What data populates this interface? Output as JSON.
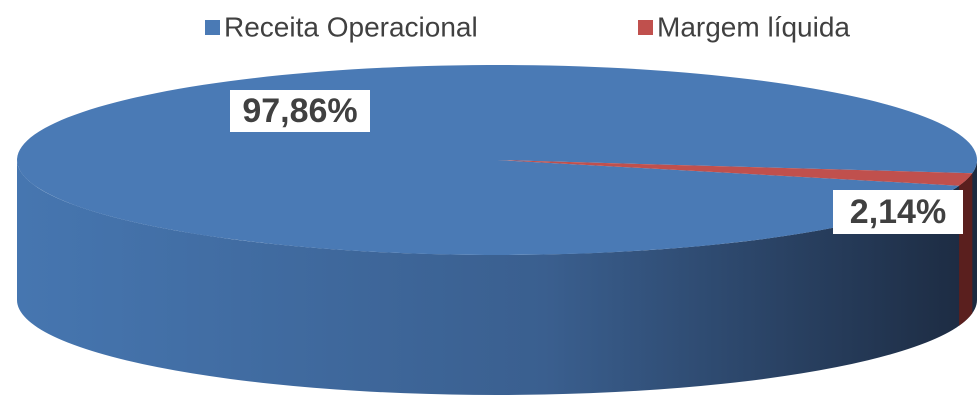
{
  "chart_data": {
    "type": "pie",
    "three_d": true,
    "categories": [
      "Receita Operacional",
      "Margem líquida"
    ],
    "values": [
      97.86,
      2.14
    ],
    "value_labels": [
      "97,86%",
      "2,14%"
    ],
    "colors": [
      "#4a7ab5",
      "#c0504d"
    ],
    "legend": "top"
  }
}
